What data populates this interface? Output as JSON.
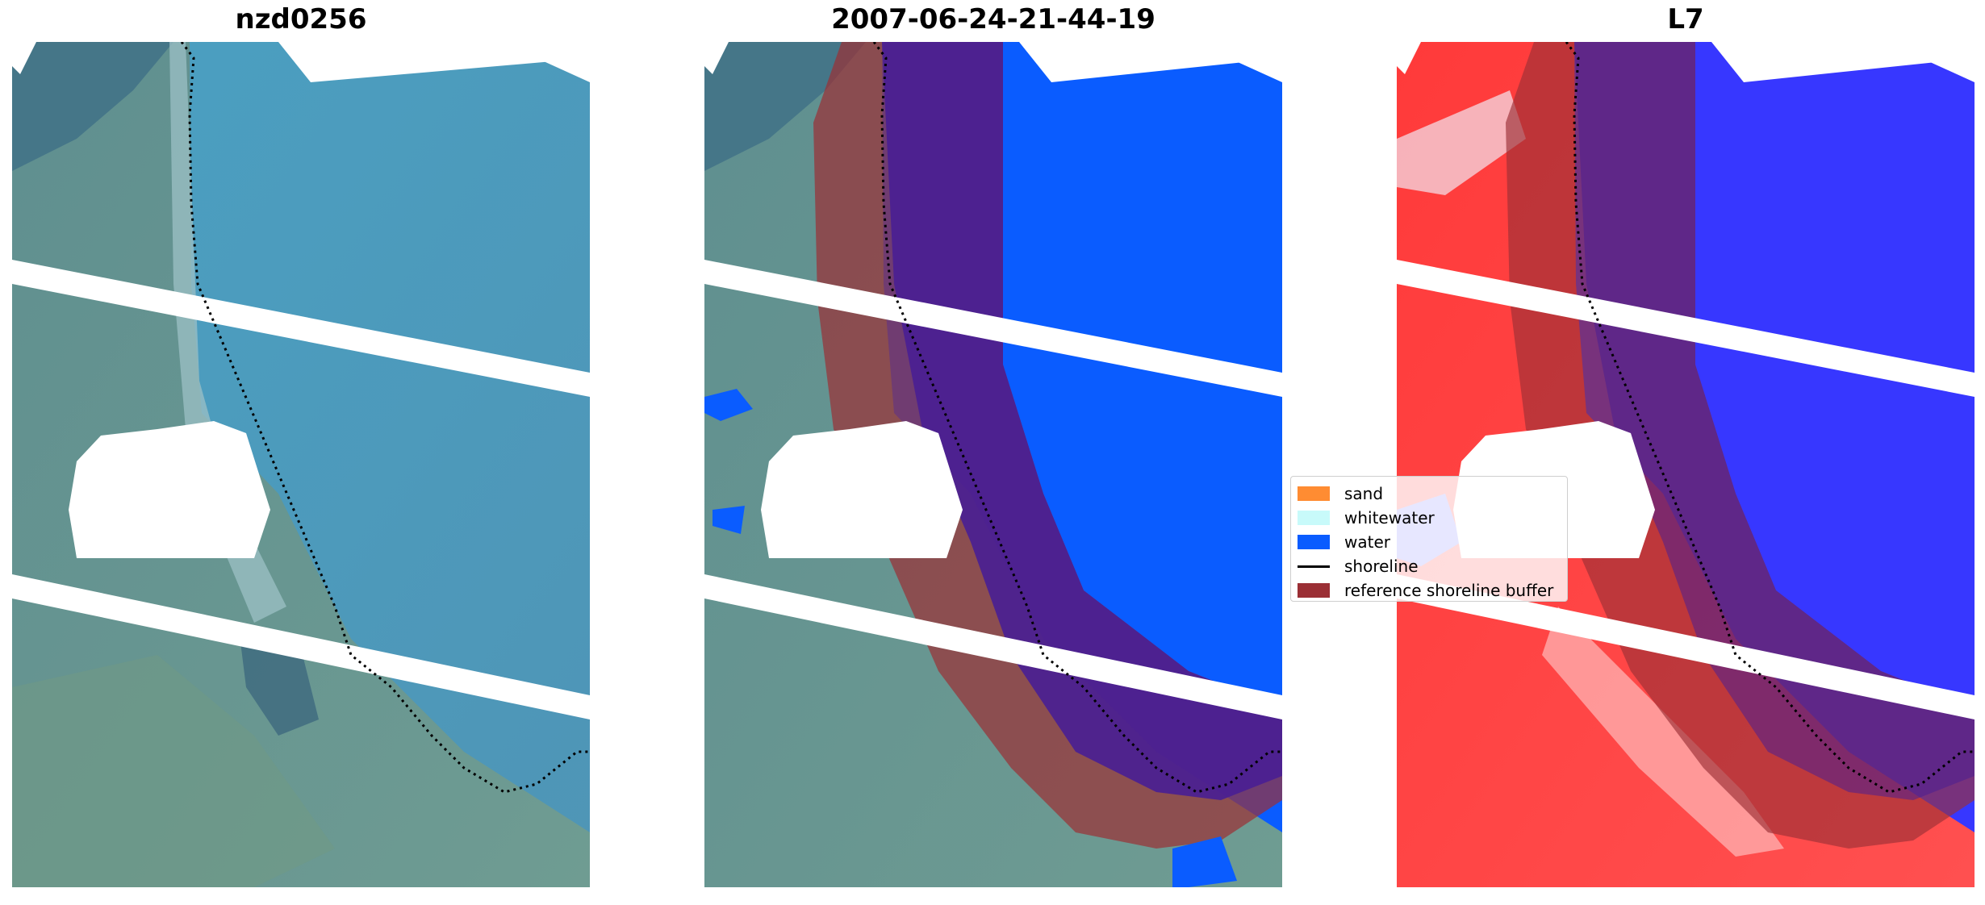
{
  "panels": [
    {
      "title": "nzd0256"
    },
    {
      "title": "2007-06-24-21-44-19"
    },
    {
      "title": "L7"
    }
  ],
  "legend": {
    "items": [
      {
        "label": "sand",
        "color": "#ff8c32"
      },
      {
        "label": "whitewater",
        "color": "#c8fafa"
      },
      {
        "label": "water",
        "color": "#0a5cff"
      },
      {
        "label": "shoreline",
        "color": "#000000"
      },
      {
        "label": "reference shoreline buffer",
        "color": "#9b2f35"
      }
    ]
  },
  "colors": {
    "ocean": "#4f9fc0",
    "land": "#6e9c93",
    "classified_water": "#0a5cff",
    "buffer_overlay": "#9b2f35",
    "index_positive": "#2a2aff",
    "index_negative": "#ff2020",
    "mask": "#ffffff"
  }
}
